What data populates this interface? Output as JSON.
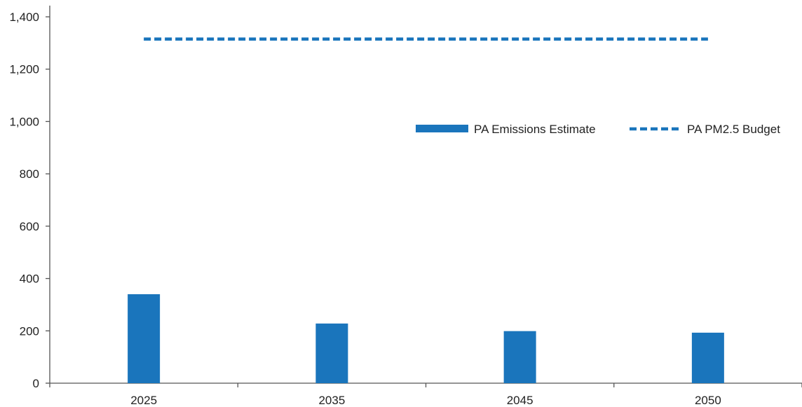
{
  "chart_data": {
    "type": "bar",
    "categories": [
      "2025",
      "2035",
      "2045",
      "2050"
    ],
    "series": [
      {
        "name": "PA Emissions Estimate",
        "kind": "bar",
        "values": [
          340,
          228,
          199,
          193
        ],
        "color": "#1a75bc"
      },
      {
        "name": "PA PM2.5 Budget",
        "kind": "dashed-line",
        "values": [
          1315,
          1315,
          1315,
          1315
        ],
        "color": "#1a75bc"
      }
    ],
    "y_ticks": [
      "0",
      "200",
      "400",
      "600",
      "800",
      "1,000",
      "1,200",
      "1,400"
    ],
    "ylim": [
      0,
      1400
    ],
    "grid": false,
    "legend_position": "upper-right",
    "title": "",
    "xlabel": "",
    "ylabel": ""
  }
}
